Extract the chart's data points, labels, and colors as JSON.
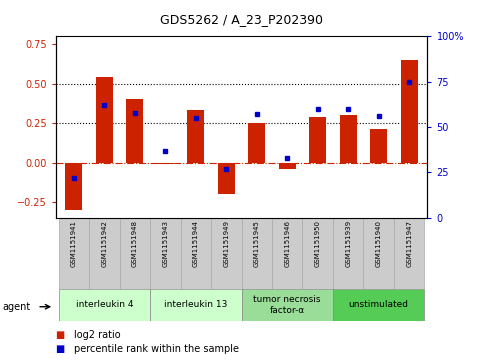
{
  "title": "GDS5262 / A_23_P202390",
  "samples": [
    "GSM1151941",
    "GSM1151942",
    "GSM1151948",
    "GSM1151943",
    "GSM1151944",
    "GSM1151949",
    "GSM1151945",
    "GSM1151946",
    "GSM1151950",
    "GSM1151939",
    "GSM1151940",
    "GSM1151947"
  ],
  "log2_ratio": [
    -0.3,
    0.54,
    0.4,
    -0.01,
    0.33,
    -0.2,
    0.25,
    -0.04,
    0.29,
    0.3,
    0.21,
    0.65
  ],
  "percentile": [
    22,
    62,
    58,
    37,
    55,
    27,
    57,
    33,
    60,
    60,
    56,
    75
  ],
  "ylim_left": [
    -0.35,
    0.8
  ],
  "ylim_right": [
    0,
    100
  ],
  "yticks_left": [
    -0.25,
    0.0,
    0.25,
    0.5,
    0.75
  ],
  "yticks_right": [
    0,
    25,
    50,
    75,
    100
  ],
  "hlines": [
    0.25,
    0.5
  ],
  "bar_color": "#cc2200",
  "dot_color": "#0000cc",
  "zero_line_color": "#cc2200",
  "groups": [
    {
      "label": "interleukin 4",
      "cols": [
        0,
        1,
        2
      ],
      "color": "#ccffcc"
    },
    {
      "label": "interleukin 13",
      "cols": [
        3,
        4,
        5
      ],
      "color": "#ccffcc"
    },
    {
      "label": "tumor necrosis\nfactor-α",
      "cols": [
        6,
        7,
        8
      ],
      "color": "#99dd99"
    },
    {
      "label": "unstimulated",
      "cols": [
        9,
        10,
        11
      ],
      "color": "#55cc55"
    }
  ],
  "legend_log2_color": "#cc2200",
  "legend_pct_color": "#0000cc",
  "title_fontsize": 9,
  "tick_fontsize": 7,
  "sample_fontsize": 5,
  "group_fontsize": 6.5,
  "legend_fontsize": 7,
  "agent_fontsize": 7
}
